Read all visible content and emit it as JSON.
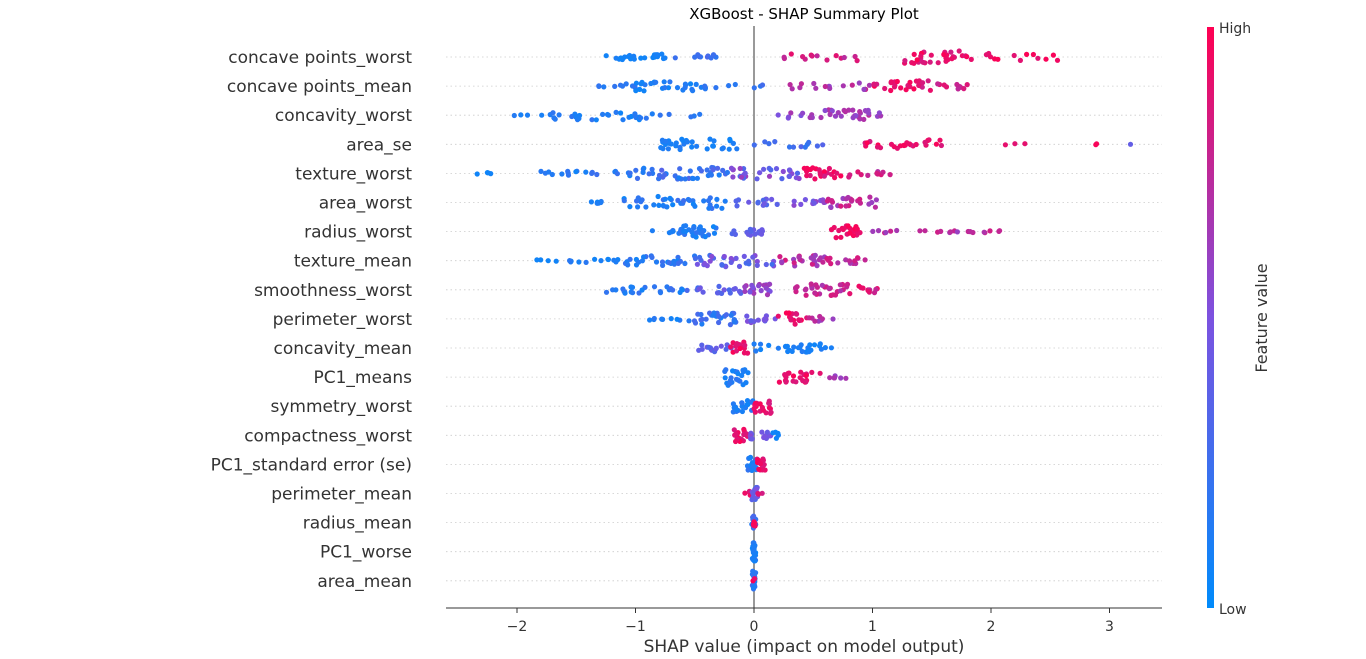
{
  "chart_data": {
    "type": "scatter",
    "title": "XGBoost - SHAP Summary Plot",
    "xlabel": "SHAP value (impact on model output)",
    "ylabel": "",
    "xlim": [
      -2.6,
      3.45
    ],
    "xticks": [
      -2,
      -1,
      0,
      1,
      2,
      3
    ],
    "xtick_labels": [
      "−2",
      "−1",
      "0",
      "1",
      "2",
      "3"
    ],
    "grid": false,
    "features": [
      {
        "name": "concave points_worst",
        "clusters": [
          [
            -1.25,
            -0.75,
            24,
            0.05,
            0.12,
            0.25
          ],
          [
            -0.75,
            -0.3,
            10,
            0.15,
            0.3,
            0.2
          ],
          [
            0.25,
            1.0,
            14,
            0.7,
            0.92,
            0.3
          ],
          [
            1.2,
            1.8,
            30,
            0.82,
            1.0,
            0.55
          ],
          [
            1.8,
            2.6,
            14,
            0.88,
            1.0,
            0.35
          ]
        ]
      },
      {
        "name": "concave points_mean",
        "clusters": [
          [
            -1.35,
            -1.0,
            10,
            0.1,
            0.25,
            0.2
          ],
          [
            -1.0,
            -0.4,
            28,
            0.05,
            0.18,
            0.4
          ],
          [
            -0.4,
            -0.45,
            1,
            0.2,
            0.2,
            0.0
          ],
          [
            -0.35,
            0.1,
            6,
            0.15,
            0.3,
            0.15
          ],
          [
            0.3,
            1.0,
            16,
            0.55,
            0.8,
            0.3
          ],
          [
            1.0,
            1.5,
            26,
            0.8,
            1.0,
            0.45
          ],
          [
            1.5,
            1.8,
            10,
            0.75,
            0.9,
            0.3
          ]
        ]
      },
      {
        "name": "concavity_worst",
        "clusters": [
          [
            -2.1,
            -1.8,
            3,
            0.05,
            0.15,
            0.05
          ],
          [
            -1.8,
            -0.9,
            30,
            0.05,
            0.2,
            0.4
          ],
          [
            -0.9,
            -0.4,
            6,
            0.1,
            0.25,
            0.15
          ],
          [
            0.2,
            0.6,
            10,
            0.5,
            0.7,
            0.25
          ],
          [
            0.6,
            1.1,
            28,
            0.55,
            0.75,
            0.45
          ]
        ]
      },
      {
        "name": "area_se",
        "clusters": [
          [
            -0.8,
            -0.1,
            34,
            0.05,
            0.15,
            0.45
          ],
          [
            -0.1,
            0.6,
            12,
            0.15,
            0.35,
            0.25
          ],
          [
            0.9,
            1.6,
            26,
            0.82,
            1.0,
            0.4
          ],
          [
            2.1,
            2.3,
            3,
            0.85,
            1.0,
            0.05
          ],
          [
            2.8,
            2.9,
            2,
            0.95,
            1.0,
            0.05
          ],
          [
            3.15,
            3.2,
            1,
            0.4,
            0.4,
            0.0
          ]
        ]
      },
      {
        "name": "texture_worst",
        "clusters": [
          [
            -2.35,
            -2.2,
            4,
            0.05,
            0.1,
            0.08
          ],
          [
            -1.8,
            -1.0,
            20,
            0.05,
            0.25,
            0.2
          ],
          [
            -1.0,
            -0.2,
            40,
            0.1,
            0.35,
            0.5
          ],
          [
            -0.2,
            0.4,
            30,
            0.3,
            0.65,
            0.45
          ],
          [
            0.4,
            0.8,
            24,
            0.82,
            1.0,
            0.5
          ],
          [
            0.8,
            1.15,
            10,
            0.7,
            0.9,
            0.2
          ]
        ]
      },
      {
        "name": "area_worst",
        "clusters": [
          [
            -1.4,
            -1.1,
            6,
            0.05,
            0.15,
            0.1
          ],
          [
            -1.1,
            -0.2,
            40,
            0.05,
            0.25,
            0.5
          ],
          [
            -0.2,
            0.2,
            14,
            0.3,
            0.45,
            0.3
          ],
          [
            0.3,
            0.6,
            12,
            0.4,
            0.6,
            0.25
          ],
          [
            0.6,
            1.05,
            24,
            0.6,
            0.85,
            0.45
          ]
        ]
      },
      {
        "name": "radius_worst",
        "clusters": [
          [
            -0.9,
            -0.6,
            10,
            0.1,
            0.25,
            0.2
          ],
          [
            -0.6,
            -0.3,
            26,
            0.05,
            0.2,
            0.5
          ],
          [
            -0.2,
            0.1,
            16,
            0.3,
            0.45,
            0.35
          ],
          [
            0.65,
            0.9,
            22,
            0.88,
            1.0,
            0.5
          ],
          [
            1.0,
            2.2,
            22,
            0.6,
            0.85,
            0.1
          ]
        ]
      },
      {
        "name": "texture_mean",
        "clusters": [
          [
            -1.9,
            -1.6,
            4,
            0.05,
            0.1,
            0.08
          ],
          [
            -1.6,
            -1.1,
            12,
            0.05,
            0.2,
            0.15
          ],
          [
            -1.1,
            -0.5,
            28,
            0.05,
            0.25,
            0.4
          ],
          [
            -0.5,
            0.2,
            34,
            0.25,
            0.55,
            0.5
          ],
          [
            0.2,
            0.6,
            24,
            0.6,
            0.85,
            0.45
          ],
          [
            0.6,
            0.95,
            14,
            0.65,
            0.85,
            0.25
          ]
        ]
      },
      {
        "name": "smoothness_worst",
        "clusters": [
          [
            -1.25,
            -0.6,
            24,
            0.05,
            0.25,
            0.3
          ],
          [
            -0.6,
            -0.1,
            18,
            0.2,
            0.45,
            0.3
          ],
          [
            -0.1,
            0.15,
            20,
            0.45,
            0.7,
            0.5
          ],
          [
            0.3,
            0.8,
            30,
            0.65,
            0.85,
            0.5
          ],
          [
            0.8,
            1.05,
            12,
            0.75,
            0.95,
            0.35
          ]
        ]
      },
      {
        "name": "perimeter_worst",
        "clusters": [
          [
            -0.9,
            -0.55,
            8,
            0.05,
            0.2,
            0.1
          ],
          [
            -0.55,
            -0.15,
            30,
            0.1,
            0.3,
            0.5
          ],
          [
            -0.1,
            0.2,
            14,
            0.35,
            0.55,
            0.3
          ],
          [
            0.2,
            0.45,
            16,
            0.85,
            1.0,
            0.5
          ],
          [
            0.45,
            0.7,
            8,
            0.6,
            0.85,
            0.2
          ]
        ]
      },
      {
        "name": "concavity_mean",
        "clusters": [
          [
            -0.5,
            -0.15,
            16,
            0.3,
            0.45,
            0.3
          ],
          [
            -0.2,
            -0.05,
            14,
            0.85,
            1.0,
            0.5
          ],
          [
            0.0,
            0.6,
            28,
            0.05,
            0.15,
            0.35
          ],
          [
            0.6,
            0.66,
            2,
            0.1,
            0.1,
            0.05
          ]
        ]
      },
      {
        "name": "PC1_means",
        "clusters": [
          [
            -0.25,
            -0.05,
            24,
            0.05,
            0.2,
            0.7
          ],
          [
            0.2,
            0.6,
            24,
            0.85,
            1.0,
            0.45
          ],
          [
            0.6,
            0.8,
            6,
            0.55,
            0.7,
            0.15
          ]
        ]
      },
      {
        "name": "symmetry_worst",
        "clusters": [
          [
            -0.18,
            0.0,
            18,
            0.05,
            0.2,
            0.55
          ],
          [
            0.0,
            0.15,
            20,
            0.8,
            1.0,
            0.6
          ]
        ]
      },
      {
        "name": "compactness_worst",
        "clusters": [
          [
            -0.18,
            -0.05,
            16,
            0.85,
            1.0,
            0.55
          ],
          [
            -0.05,
            0.15,
            14,
            0.35,
            0.55,
            0.3
          ],
          [
            0.15,
            0.22,
            6,
            0.05,
            0.1,
            0.35
          ]
        ]
      },
      {
        "name": "PC1_standard error (se)",
        "clusters": [
          [
            -0.07,
            0.02,
            18,
            0.05,
            0.2,
            0.6
          ],
          [
            0.02,
            0.1,
            14,
            0.8,
            1.0,
            0.5
          ]
        ]
      },
      {
        "name": "perimeter_mean",
        "clusters": [
          [
            -0.08,
            -0.02,
            5,
            0.85,
            1.0,
            0.2
          ],
          [
            -0.02,
            0.03,
            14,
            0.3,
            0.5,
            0.6
          ],
          [
            0.03,
            0.07,
            3,
            0.75,
            0.9,
            0.1
          ]
        ]
      },
      {
        "name": "radius_mean",
        "clusters": [
          [
            -0.02,
            0.02,
            16,
            0.05,
            0.3,
            0.6
          ],
          [
            -0.01,
            0.01,
            6,
            0.9,
            1.0,
            0.3
          ]
        ]
      },
      {
        "name": "PC1_worse",
        "clusters": [
          [
            -0.015,
            0.015,
            24,
            0.05,
            0.2,
            0.8
          ]
        ]
      },
      {
        "name": "area_mean",
        "clusters": [
          [
            -0.015,
            0.015,
            22,
            0.05,
            0.3,
            0.8
          ],
          [
            -0.01,
            0.01,
            3,
            0.9,
            1.0,
            0.3
          ]
        ]
      }
    ]
  },
  "colorbar": {
    "label": "Feature value",
    "high_label": "High",
    "low_label": "Low",
    "low_color": "#008bfb",
    "mid_color": "#7c52e0",
    "high_color": "#ff0052"
  },
  "style": {
    "zero_line_color": "#999999",
    "guide_line_color": "#cccccc",
    "text_color": "#333333"
  }
}
